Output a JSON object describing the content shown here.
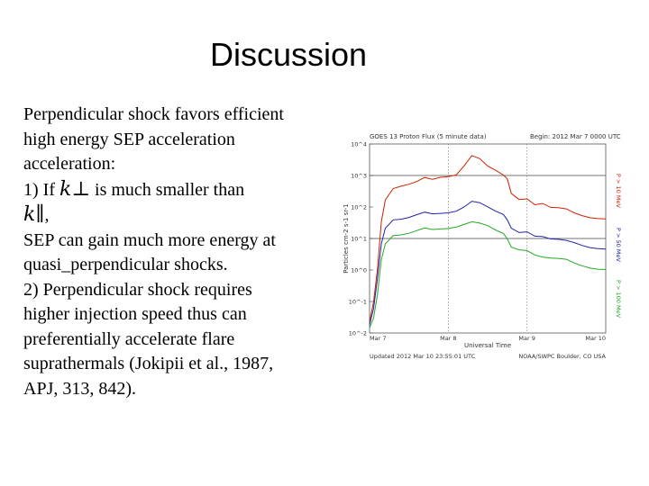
{
  "slide": {
    "title": "Discussion",
    "lines": [
      "Perpendicular shock favors efficient",
      "high energy SEP acceleration",
      "acceleration:",
      "1) If",
      "is much smaller than",
      ",",
      "SEP can gain much more energy at",
      "quasi_perpendicular shocks.",
      "2) Perpendicular shock requires",
      "higher injection speed thus can",
      "preferentially accelerate flare",
      "suprathermals (Jokipii et al., 1987,",
      "APJ, 313, 842)."
    ],
    "symbol_kappa_perp": "k⊥",
    "symbol_kappa_par": "k∥"
  },
  "chart_data": {
    "type": "line",
    "title": "GOES 13 Proton Flux (5 minute data)",
    "title_right": "Begin: 2012 Mar 7 0000 UTC",
    "xlabel": "Universal Time",
    "ylabel": "Particles cm-2 s-1 sr-1",
    "x_ticks": [
      "Mar 7",
      "Mar 8",
      "Mar 9",
      "Mar 10"
    ],
    "y_ticks": [
      "10^4",
      "10^3",
      "10^2",
      "10^1",
      "10^0",
      "10^-1",
      "10^-2"
    ],
    "ylim_log10": [
      -2,
      4
    ],
    "threshold_lines_log10": [
      3,
      1
    ],
    "legend_right": [
      {
        "label": "P > 10 MeV",
        "color": "#cc2200"
      },
      {
        "label": "P > 50 MeV",
        "color": "#2222aa"
      },
      {
        "label": "P > 100 MeV",
        "color": "#22aa22"
      }
    ],
    "footer_left": "Updated 2012 Mar 10 23:55:01 UTC",
    "footer_right": "NOAA/SWPC Boulder, CO USA",
    "series": [
      {
        "name": "P > 10 MeV",
        "color": "#cc2200",
        "x": [
          0.0,
          0.05,
          0.1,
          0.15,
          0.2,
          0.3,
          0.4,
          0.5,
          0.6,
          0.7,
          0.8,
          0.9,
          1.0,
          1.1,
          1.2,
          1.3,
          1.4,
          1.5,
          1.6,
          1.7,
          1.75,
          1.8,
          1.9,
          2.0,
          2.1,
          2.2,
          2.3,
          2.4,
          2.5,
          2.6,
          2.7,
          2.8,
          2.9,
          3.0
        ],
        "y": [
          -1.6,
          -1.0,
          0.0,
          1.5,
          2.2,
          2.6,
          2.7,
          2.75,
          2.8,
          2.9,
          2.85,
          2.95,
          3.0,
          3.05,
          3.3,
          3.6,
          3.5,
          3.3,
          3.2,
          3.05,
          2.9,
          2.4,
          2.2,
          2.25,
          2.1,
          2.15,
          2.0,
          1.95,
          1.9,
          1.8,
          1.75,
          1.7,
          1.65,
          1.6
        ]
      },
      {
        "name": "P > 50 MeV",
        "color": "#2222aa",
        "x": [
          0.0,
          0.05,
          0.1,
          0.15,
          0.2,
          0.3,
          0.4,
          0.5,
          0.6,
          0.7,
          0.8,
          0.9,
          1.0,
          1.1,
          1.2,
          1.3,
          1.4,
          1.5,
          1.6,
          1.7,
          1.75,
          1.8,
          1.9,
          2.0,
          2.1,
          2.2,
          2.3,
          2.4,
          2.5,
          2.6,
          2.7,
          2.8,
          2.9,
          3.0
        ],
        "y": [
          -1.7,
          -1.2,
          -0.3,
          0.8,
          1.3,
          1.6,
          1.65,
          1.7,
          1.75,
          1.8,
          1.75,
          1.8,
          1.85,
          1.9,
          2.0,
          2.15,
          2.1,
          2.0,
          1.9,
          1.8,
          1.6,
          1.3,
          1.15,
          1.2,
          1.1,
          1.1,
          1.0,
          0.95,
          0.9,
          0.85,
          0.8,
          0.75,
          0.7,
          0.65
        ]
      },
      {
        "name": "P > 100 MeV",
        "color": "#22aa22",
        "x": [
          0.0,
          0.05,
          0.1,
          0.15,
          0.2,
          0.3,
          0.4,
          0.5,
          0.6,
          0.7,
          0.8,
          0.9,
          1.0,
          1.1,
          1.2,
          1.3,
          1.4,
          1.5,
          1.6,
          1.7,
          1.75,
          1.8,
          1.9,
          2.0,
          2.1,
          2.2,
          2.3,
          2.4,
          2.5,
          2.6,
          2.7,
          2.8,
          2.9,
          3.0
        ],
        "y": [
          -1.8,
          -1.5,
          -0.8,
          0.3,
          0.8,
          1.1,
          1.15,
          1.2,
          1.25,
          1.3,
          1.25,
          1.3,
          1.35,
          1.4,
          1.45,
          1.5,
          1.45,
          1.4,
          1.3,
          1.2,
          1.0,
          0.7,
          0.6,
          0.6,
          0.5,
          0.45,
          0.4,
          0.35,
          0.3,
          0.2,
          0.15,
          0.1,
          0.05,
          0.0
        ]
      }
    ]
  }
}
